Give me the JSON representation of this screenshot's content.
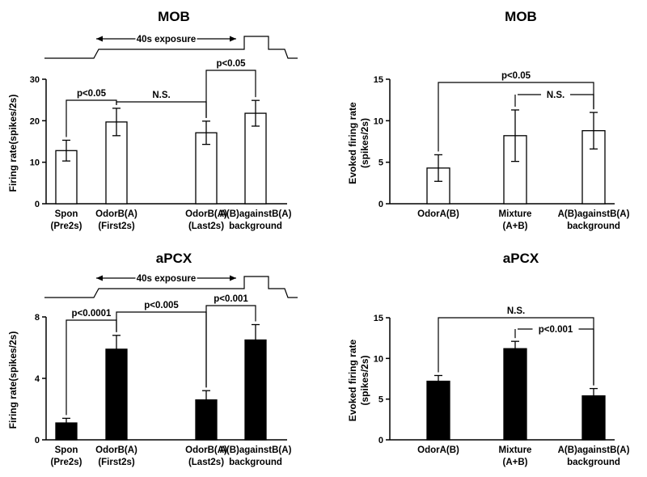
{
  "chart_data": [
    {
      "type": "bar",
      "title": "MOB",
      "ylabel": "Firing rate(spikes/2s)",
      "ylim": [
        0,
        30
      ],
      "yticks": [
        0,
        10,
        20,
        30
      ],
      "fill": "#ffffff",
      "categories": [
        "Spon\n(Pre2s)",
        "OdorB(A)\n(First2s)",
        "OdorB(A)\n(Last2s)",
        "A(B)againstB(A)\nbackground"
      ],
      "values": [
        12.8,
        19.7,
        17.1,
        21.8
      ],
      "errors": [
        2.5,
        3.3,
        2.8,
        3.1
      ],
      "timeline": {
        "label": "40s exposure"
      },
      "annotations": [
        {
          "text": "p<0.05",
          "from": 0,
          "to": 1
        },
        {
          "text": "N.S.",
          "from": 1,
          "to": 2
        },
        {
          "text": "p<0.05",
          "from": 2,
          "to": 3
        }
      ]
    },
    {
      "type": "bar",
      "title": "MOB",
      "ylabel": "Evoked firing rate\n(spikes/2s)",
      "ylim": [
        0,
        15
      ],
      "yticks": [
        0,
        5,
        10,
        15
      ],
      "fill": "#ffffff",
      "categories": [
        "OdorA(B)",
        "Mixture\n(A+B)",
        "A(B)againstB(A)\nbackground"
      ],
      "values": [
        4.3,
        8.2,
        8.8
      ],
      "errors": [
        1.6,
        3.1,
        2.2
      ],
      "annotations": [
        {
          "text": "p<0.05",
          "from": 0,
          "to": 2
        },
        {
          "text": "N.S.",
          "from": 1,
          "to": 2
        }
      ]
    },
    {
      "type": "bar",
      "title": "aPCX",
      "ylabel": "Firing rate(spikes/2s)",
      "ylim": [
        0,
        8
      ],
      "yticks": [
        0,
        4,
        8
      ],
      "fill": "#000000",
      "categories": [
        "Spon\n(Pre2s)",
        "OdorB(A)\n(First2s)",
        "OdorB(A)\n(Last2s)",
        "A(B)againstB(A)\nbackground"
      ],
      "values": [
        1.1,
        5.9,
        2.6,
        6.5
      ],
      "errors": [
        0.3,
        0.9,
        0.6,
        1.0
      ],
      "timeline": {
        "label": "40s exposure"
      },
      "annotations": [
        {
          "text": "p<0.0001",
          "from": 0,
          "to": 1
        },
        {
          "text": "p<0.005",
          "from": 1,
          "to": 2
        },
        {
          "text": "p<0.001",
          "from": 2,
          "to": 3
        }
      ]
    },
    {
      "type": "bar",
      "title": "aPCX",
      "ylabel": "Evoked firing rate\n(spikes/2s)",
      "ylim": [
        0,
        15
      ],
      "yticks": [
        0,
        5,
        10,
        15
      ],
      "fill": "#000000",
      "categories": [
        "OdorA(B)",
        "Mixture\n(A+B)",
        "A(B)againstB(A)\nbackground"
      ],
      "values": [
        7.2,
        11.2,
        5.4
      ],
      "errors": [
        0.7,
        0.9,
        0.9
      ],
      "annotations": [
        {
          "text": "N.S.",
          "from": 0,
          "to": 2
        },
        {
          "text": "p<0.001",
          "from": 1,
          "to": 2
        }
      ]
    }
  ]
}
